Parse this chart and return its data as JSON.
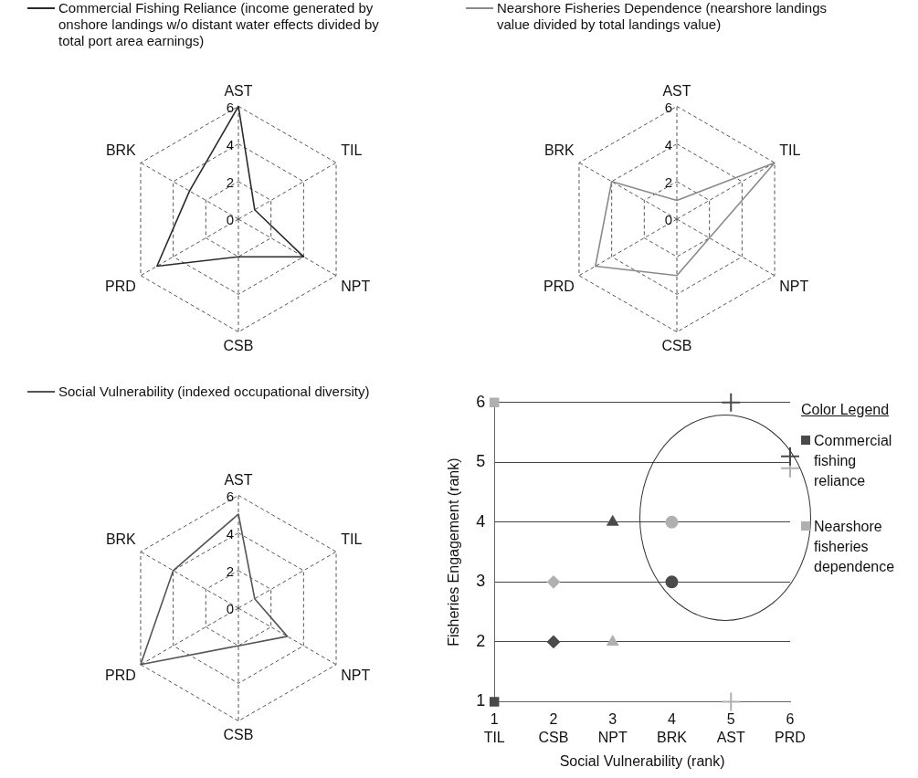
{
  "chart_data": [
    {
      "type": "radar",
      "legend": "top left",
      "marker": "none",
      "grid": true,
      "categories": [
        "AST",
        "TIL",
        "NPT",
        "CSB",
        "PRD",
        "BRK"
      ],
      "ylim": [
        0,
        6
      ],
      "yticks": [
        0,
        2,
        4,
        6
      ],
      "series": [
        {
          "name": "Commercial Fishing Reliance (income generated by onshore landings w/o distant water effects divided by total port area earnings)",
          "color": "#2b2b2b",
          "values": [
            6,
            1,
            4,
            2,
            5,
            3
          ]
        }
      ]
    },
    {
      "type": "radar",
      "legend": "top left",
      "marker": "none",
      "grid": true,
      "categories": [
        "AST",
        "TIL",
        "NPT",
        "CSB",
        "PRD",
        "BRK"
      ],
      "ylim": [
        0,
        6
      ],
      "yticks": [
        0,
        2,
        4,
        6
      ],
      "series": [
        {
          "name": "Nearshore Fisheries Dependence (nearshore landings value divided by total landings value)",
          "color": "#8a8a8a",
          "values": [
            1,
            6,
            2,
            3,
            5,
            4
          ]
        }
      ]
    },
    {
      "type": "radar",
      "legend": "top left",
      "marker": "none",
      "grid": true,
      "categories": [
        "AST",
        "TIL",
        "NPT",
        "CSB",
        "PRD",
        "BRK"
      ],
      "ylim": [
        0,
        6
      ],
      "yticks": [
        0,
        2,
        4,
        6
      ],
      "series": [
        {
          "name": "Social Vulnerability (indexed occupational diversity)",
          "color": "#555555",
          "values": [
            5,
            1,
            3,
            2,
            6,
            4
          ]
        }
      ]
    },
    {
      "type": "scatter",
      "xlabel": "Social Vulnerability (rank)",
      "ylabel": "Fisheries Engagement (rank)",
      "legend_title": "Color Legend",
      "legend": "right",
      "grid": "y",
      "marker": [
        "square",
        "diamond",
        "triangle",
        "circle",
        "cross",
        "cross"
      ],
      "xlim": [
        1,
        6
      ],
      "ylim": [
        1,
        6
      ],
      "xticks": [
        {
          "value": 1,
          "label": "1\nTIL"
        },
        {
          "value": 2,
          "label": "2\nCSB"
        },
        {
          "value": 3,
          "label": "3\nNPT"
        },
        {
          "value": 4,
          "label": "4\nBRK"
        },
        {
          "value": 5,
          "label": "5\nAST"
        },
        {
          "value": 6,
          "label": "6\nPRD"
        }
      ],
      "yticks": [
        1,
        2,
        3,
        4,
        5,
        6
      ],
      "series": [
        {
          "name": "Commercial fishing reliance",
          "color": "#4a4a4a",
          "x": [
            1,
            2,
            3,
            4,
            5,
            6
          ],
          "values": [
            1,
            2,
            4,
            3,
            6,
            5.1
          ]
        },
        {
          "name": "Nearshore fisheries dependence",
          "color": "#b0b0b0",
          "x": [
            1,
            2,
            3,
            4,
            5,
            6
          ],
          "values": [
            6,
            3,
            2,
            4,
            1,
            4.9
          ]
        }
      ]
    }
  ]
}
